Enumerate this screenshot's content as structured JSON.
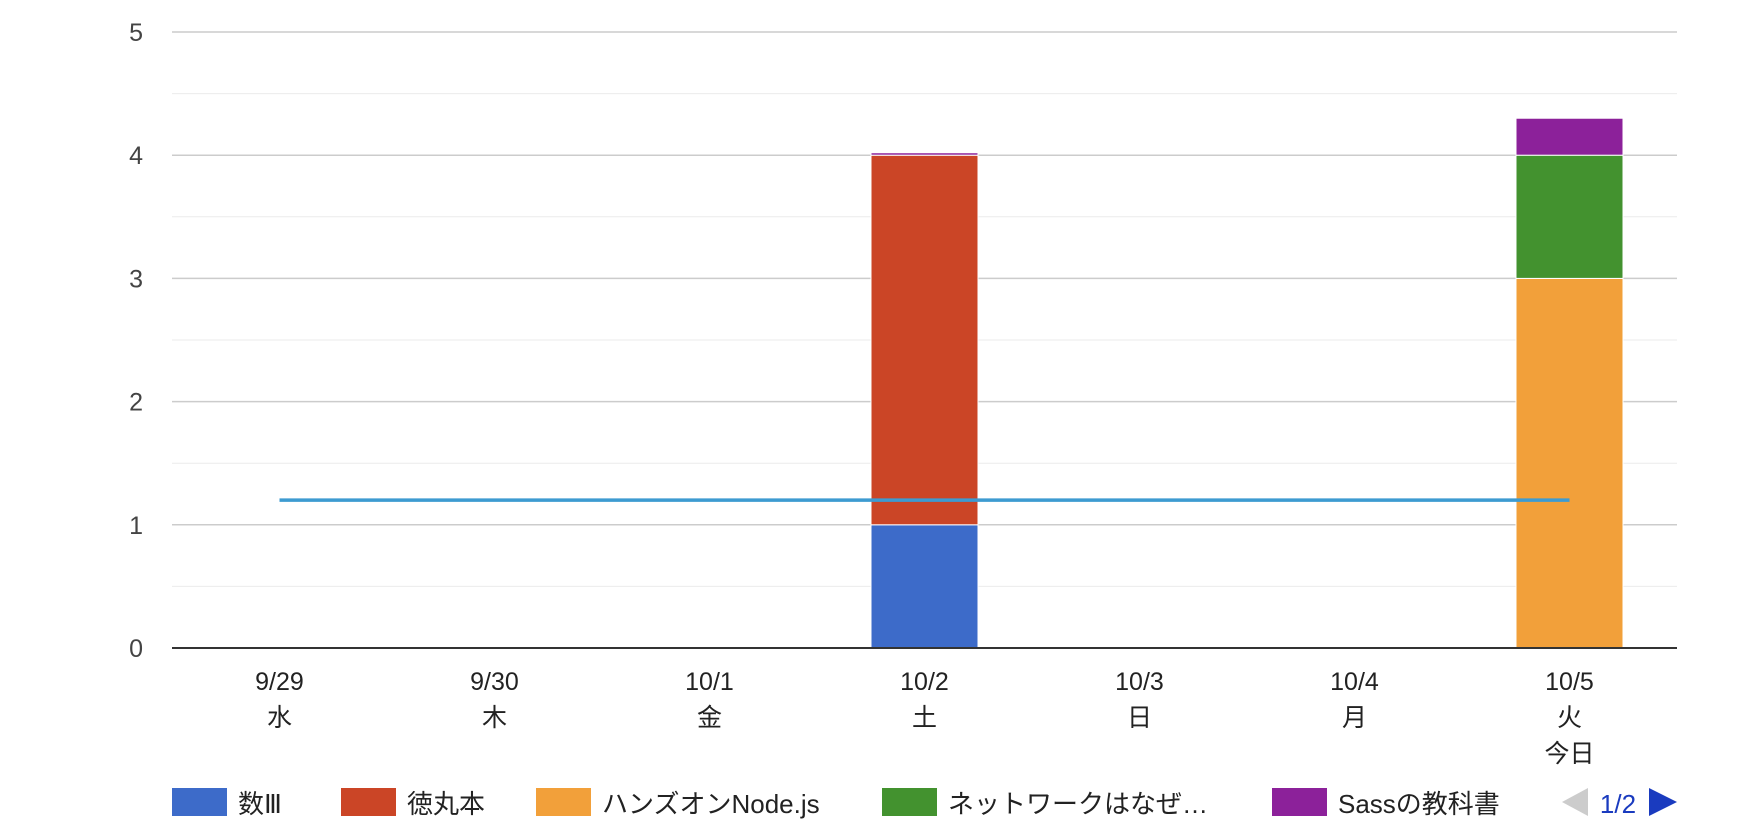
{
  "chart_data": {
    "type": "bar",
    "stacked": true,
    "categories": [
      [
        "9/29",
        "水"
      ],
      [
        "9/30",
        "木"
      ],
      [
        "10/1",
        "金"
      ],
      [
        "10/2",
        "土"
      ],
      [
        "10/3",
        "日"
      ],
      [
        "10/4",
        "月"
      ],
      [
        "10/5",
        "火",
        "今日"
      ]
    ],
    "series": [
      {
        "name": "数Ⅲ",
        "color": "#3d6bc9",
        "values": [
          0,
          0,
          0,
          1,
          0,
          0,
          0
        ]
      },
      {
        "name": "徳丸本",
        "color": "#cb4526",
        "values": [
          0,
          0,
          0,
          3,
          0,
          0,
          0
        ]
      },
      {
        "name": "ハンズオンNode.js",
        "color": "#f2a03a",
        "values": [
          0,
          0,
          0,
          0,
          0,
          0,
          3
        ]
      },
      {
        "name": "ネットワークはなぜ…",
        "color": "#43922f",
        "values": [
          0,
          0,
          0,
          0,
          0,
          0,
          1
        ]
      },
      {
        "name": "Sassの教科書",
        "color": "#8c219a",
        "values": [
          0,
          0,
          0,
          0.02,
          0,
          0,
          0.3
        ]
      }
    ],
    "average_line": {
      "value": 1.2,
      "color": "#3d9bd1"
    },
    "yticks": [
      0,
      1,
      2,
      3,
      4,
      5
    ],
    "ylim": [
      0,
      5
    ],
    "grid": true,
    "legend": {
      "position": "bottom",
      "page": "1/2"
    }
  }
}
